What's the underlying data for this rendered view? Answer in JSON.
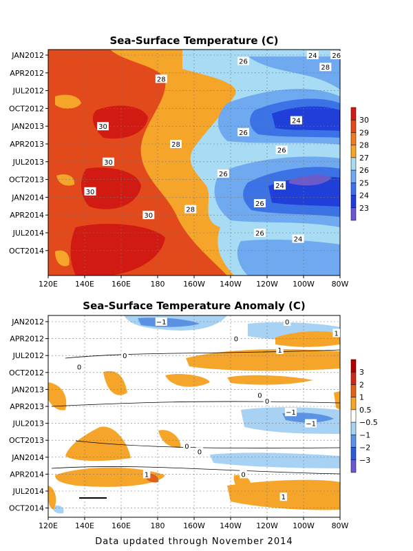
{
  "footer": "Data updated through November 2014",
  "colors": {
    "sst": [
      "#6a5acd",
      "#1f3fd8",
      "#3b73e6",
      "#6fa9ef",
      "#a7dcf4",
      "#f6a52b",
      "#f27b1f",
      "#e34a1b",
      "#d11a12"
    ],
    "anomaly": [
      "#6a5acd",
      "#2d5ad6",
      "#5a93e6",
      "#a8d2f3",
      "#ffffff",
      "#f6a52b",
      "#e0601c",
      "#cc2a14",
      "#b00000"
    ]
  },
  "chart_data": [
    {
      "type": "heatmap",
      "title": "Sea-Surface Temperature (C)",
      "x_ticks": [
        "120E",
        "140E",
        "160E",
        "180",
        "160W",
        "140W",
        "120W",
        "100W",
        "80W"
      ],
      "y_ticks": [
        "JAN2012",
        "APR2012",
        "JUL2012",
        "OCT2012",
        "JAN2013",
        "APR2013",
        "JUL2013",
        "OCT2013",
        "JAN2014",
        "APR2014",
        "JUL2014",
        "OCT2014"
      ],
      "colorbar": [
        "23",
        "24",
        "25",
        "26",
        "27",
        "28",
        "29",
        "30"
      ],
      "contour_labels": [
        {
          "text": "24",
          "lon": -95,
          "time": "JAN2012"
        },
        {
          "text": "26",
          "lon": -82,
          "time": "JAN2012"
        },
        {
          "text": "26",
          "lon": -133,
          "time": "FEB2012"
        },
        {
          "text": "28",
          "lon": -88,
          "time": "MAR2012"
        },
        {
          "text": "28",
          "lon": -178,
          "time": "MAY2012"
        },
        {
          "text": "24",
          "lon": -104,
          "time": "DEC2012"
        },
        {
          "text": "30",
          "lon": 150,
          "time": "JAN2013"
        },
        {
          "text": "26",
          "lon": -133,
          "time": "FEB2013"
        },
        {
          "text": "28",
          "lon": -170,
          "time": "APR2013"
        },
        {
          "text": "26",
          "lon": -112,
          "time": "MAY2013"
        },
        {
          "text": "30",
          "lon": 153,
          "time": "JUL2013"
        },
        {
          "text": "26",
          "lon": -144,
          "time": "SEP2013"
        },
        {
          "text": "24",
          "lon": -113,
          "time": "NOV2013"
        },
        {
          "text": "30",
          "lon": 143,
          "time": "DEC2013"
        },
        {
          "text": "26",
          "lon": -124,
          "time": "FEB2014"
        },
        {
          "text": "28",
          "lon": -162,
          "time": "MAR2014"
        },
        {
          "text": "30",
          "lon": 175,
          "time": "APR2014"
        },
        {
          "text": "26",
          "lon": -124,
          "time": "JUL2014"
        },
        {
          "text": "24",
          "lon": -103,
          "time": "AUG2014"
        }
      ]
    },
    {
      "type": "heatmap",
      "title": "Sea-Surface Temperature Anomaly (C)",
      "x_ticks": [
        "120E",
        "140E",
        "160E",
        "180",
        "160W",
        "140W",
        "120W",
        "100W",
        "80W"
      ],
      "y_ticks": [
        "JAN2012",
        "APR2012",
        "JUL2012",
        "OCT2012",
        "JAN2013",
        "APR2013",
        "JUL2013",
        "OCT2013",
        "JAN2014",
        "APR2014",
        "JUL2014",
        "OCT2014"
      ],
      "colorbar": [
        "3",
        "2",
        "1",
        "0.5",
        "−0.5",
        "−1",
        "−2",
        "−3"
      ],
      "contour_labels": [
        {
          "text": "−1",
          "lon": -178,
          "time": "JAN2012"
        },
        {
          "text": "0",
          "lon": -109,
          "time": "JAN2012"
        },
        {
          "text": "1",
          "lon": -82,
          "time": "MAR2012"
        },
        {
          "text": "0",
          "lon": -137,
          "time": "APR2012"
        },
        {
          "text": "1",
          "lon": -113,
          "time": "JUN2012"
        },
        {
          "text": "0",
          "lon": 162,
          "time": "JUL2012"
        },
        {
          "text": "0",
          "lon": 137,
          "time": "SEP2012"
        },
        {
          "text": "0",
          "lon": -124,
          "time": "FEB2013"
        },
        {
          "text": "0",
          "lon": -120,
          "time": "MAR2013"
        },
        {
          "text": "−1",
          "lon": -107,
          "time": "MAY2013"
        },
        {
          "text": "−1",
          "lon": -96,
          "time": "JUL2013"
        },
        {
          "text": "0",
          "lon": -164,
          "time": "NOV2013"
        },
        {
          "text": "0",
          "lon": -157,
          "time": "DEC2013"
        },
        {
          "text": "1",
          "lon": 174,
          "time": "APR2014"
        },
        {
          "text": "0",
          "lon": -133,
          "time": "APR2014"
        },
        {
          "text": "1",
          "lon": -111,
          "time": "AUG2014"
        }
      ]
    }
  ]
}
